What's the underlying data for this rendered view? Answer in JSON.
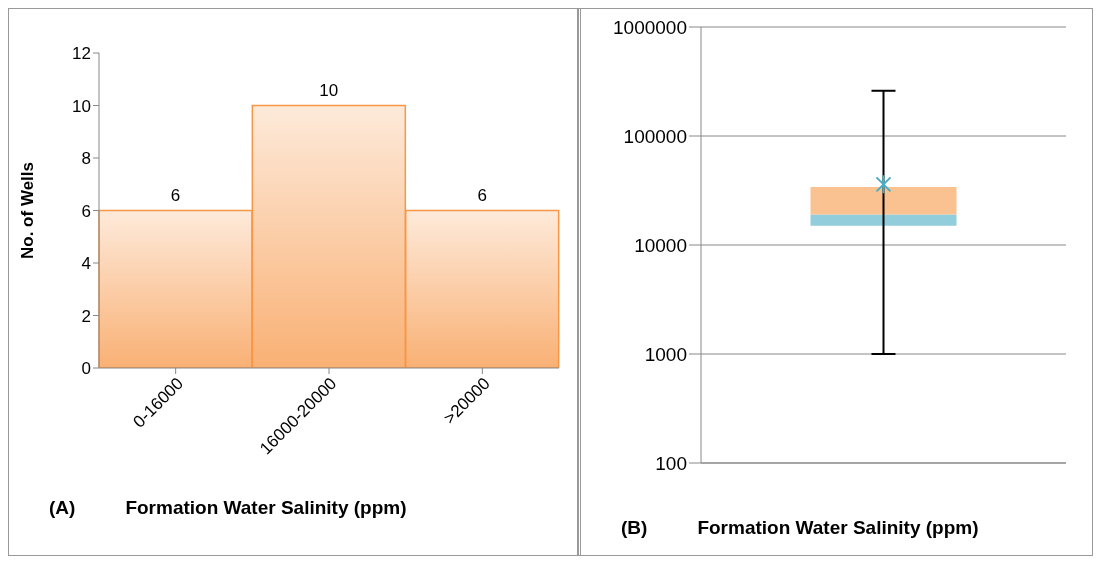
{
  "chart_data": [
    {
      "type": "bar",
      "ylabel": "No. of Wells",
      "xlabel": "Formation Water Salinity (ppm)",
      "annotations": [
        "(A)"
      ],
      "categories": [
        "0-16000",
        "16000-20000",
        ">20000"
      ],
      "values": [
        6,
        10,
        6
      ],
      "color": "#f79646",
      "ylim": [
        0,
        12
      ],
      "yticks": [
        0,
        2,
        4,
        6,
        8,
        10,
        12
      ],
      "grid": false,
      "legend": false,
      "data_labels": true
    },
    {
      "type": "box",
      "xlabel": "Formation Water Salinity (ppm)",
      "annotations": [
        "(B)"
      ],
      "categories": [
        null
      ],
      "log": true,
      "grid": "y",
      "legend": false,
      "ylim": [
        100,
        1000000
      ],
      "yticks": [
        100,
        1000,
        10000,
        100000,
        1000000
      ],
      "color": "#f9c290",
      "series": [
        {
          "type": "box",
          "color": "#92cddc",
          "boxes": [
            {
              "low": 1000,
              "q1": 15000,
              "median": 19000,
              "q3": 34000,
              "high": 260000
            }
          ]
        },
        {
          "type": "scatter",
          "color": "#4bacc6",
          "marker": "cross",
          "values": [
            36000
          ]
        }
      ]
    }
  ]
}
